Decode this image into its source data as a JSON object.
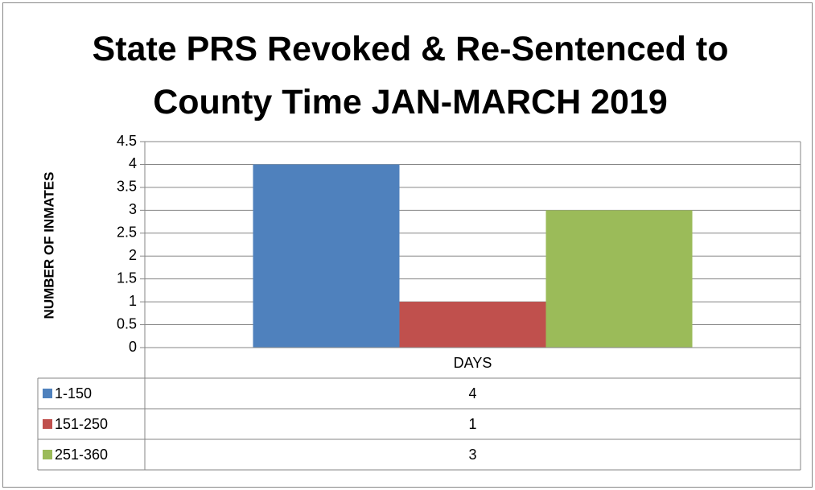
{
  "chart_data": {
    "type": "bar",
    "title": "State PRS Revoked & Re-Sentenced to County Time JAN-MARCH 2019",
    "ylabel": "NUMBER OF INMATES",
    "categories": [
      "DAYS"
    ],
    "series": [
      {
        "name": "1-150",
        "color": "#4f81bd",
        "values": [
          4
        ]
      },
      {
        "name": "151-250",
        "color": "#c0504d",
        "values": [
          1
        ]
      },
      {
        "name": "251-360",
        "color": "#9bbb59",
        "values": [
          3
        ]
      }
    ],
    "ylim": [
      0,
      4.5
    ],
    "yticks": [
      0,
      0.5,
      1,
      1.5,
      2,
      2.5,
      3,
      3.5,
      4,
      4.5
    ],
    "grid": true
  }
}
